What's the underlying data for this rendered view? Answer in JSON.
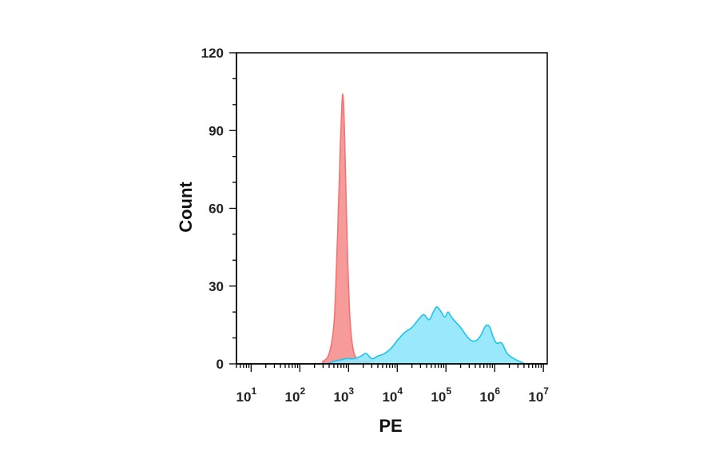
{
  "chart_data": {
    "type": "area",
    "xlabel": "PE",
    "ylabel": "Count",
    "x_scale": "log10",
    "xlim": [
      5,
      12000000
    ],
    "ylim": [
      0,
      120
    ],
    "grid": false,
    "yticks": [
      0,
      30,
      60,
      90,
      120
    ],
    "xtick_exponents": [
      1,
      2,
      3,
      4,
      5,
      6,
      7
    ],
    "xtick_base": "10",
    "series": [
      {
        "color": "#f47373",
        "fill": "#f59595",
        "points": [
          [
            5,
            0
          ],
          [
            200,
            0
          ],
          [
            300,
            1
          ],
          [
            400,
            4
          ],
          [
            500,
            15
          ],
          [
            560,
            35
          ],
          [
            620,
            60
          ],
          [
            680,
            85
          ],
          [
            730,
            100
          ],
          [
            760,
            104
          ],
          [
            800,
            98
          ],
          [
            850,
            80
          ],
          [
            900,
            60
          ],
          [
            960,
            40
          ],
          [
            1050,
            20
          ],
          [
            1150,
            10
          ],
          [
            1300,
            4
          ],
          [
            1500,
            2
          ],
          [
            1800,
            1
          ],
          [
            2300,
            1
          ],
          [
            3000,
            1
          ],
          [
            4000,
            0
          ],
          [
            12000000,
            0
          ]
        ]
      },
      {
        "color": "#1cc4ea",
        "fill": "#8fe6fb",
        "points": [
          [
            5,
            0
          ],
          [
            250,
            0
          ],
          [
            500,
            1
          ],
          [
            900,
            2
          ],
          [
            1300,
            2
          ],
          [
            1800,
            3
          ],
          [
            2300,
            4
          ],
          [
            3000,
            2
          ],
          [
            4000,
            3
          ],
          [
            5500,
            4
          ],
          [
            7500,
            6
          ],
          [
            10000,
            9
          ],
          [
            14000,
            12
          ],
          [
            20000,
            14
          ],
          [
            27000,
            17
          ],
          [
            35000,
            19
          ],
          [
            45000,
            17
          ],
          [
            55000,
            20
          ],
          [
            65000,
            22
          ],
          [
            80000,
            20
          ],
          [
            95000,
            18
          ],
          [
            110000,
            20
          ],
          [
            130000,
            18
          ],
          [
            160000,
            16
          ],
          [
            200000,
            14
          ],
          [
            260000,
            11
          ],
          [
            330000,
            9
          ],
          [
            420000,
            9
          ],
          [
            520000,
            11
          ],
          [
            620000,
            14
          ],
          [
            700000,
            15
          ],
          [
            800000,
            14
          ],
          [
            950000,
            10
          ],
          [
            1100000,
            8
          ],
          [
            1400000,
            8
          ],
          [
            1800000,
            4
          ],
          [
            2500000,
            2
          ],
          [
            3200000,
            1
          ],
          [
            4500000,
            0
          ],
          [
            12000000,
            0
          ]
        ]
      }
    ]
  }
}
